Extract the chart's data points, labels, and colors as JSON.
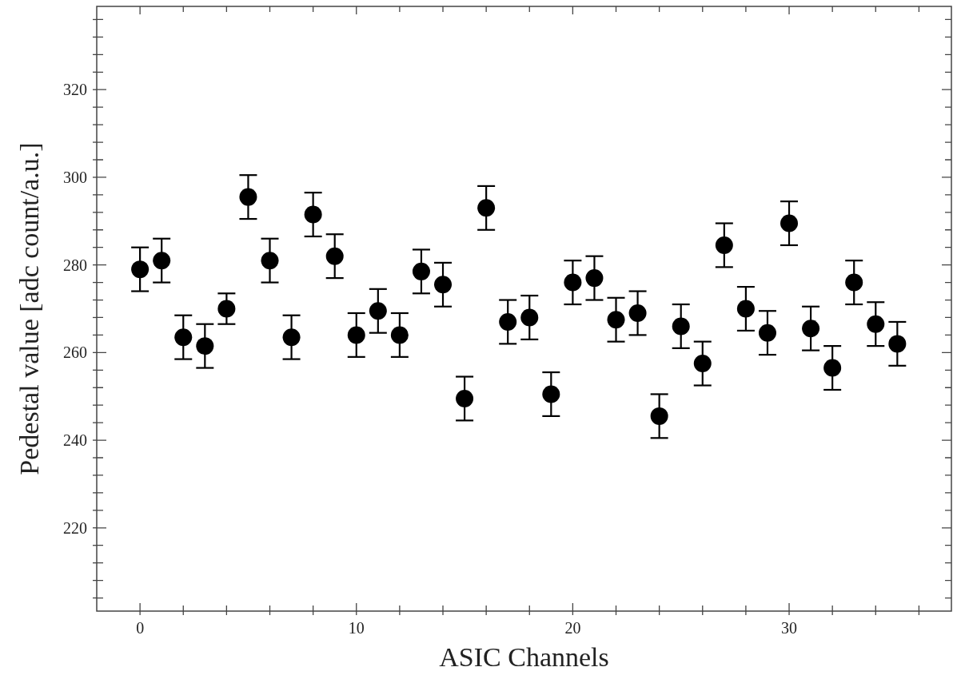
{
  "chart_data": {
    "type": "scatter",
    "xlabel": "ASIC Channels",
    "ylabel": "Pedestal value [adc count/a.u.]",
    "x": [
      0,
      1,
      2,
      3,
      4,
      5,
      6,
      7,
      8,
      9,
      10,
      11,
      12,
      13,
      14,
      15,
      16,
      17,
      18,
      19,
      20,
      21,
      22,
      23,
      24,
      25,
      26,
      27,
      28,
      29,
      30,
      31,
      32,
      33,
      34,
      35
    ],
    "values": [
      279,
      281,
      263.5,
      261.5,
      270,
      295.5,
      281,
      263.5,
      291.5,
      282,
      264,
      269.5,
      264,
      278.5,
      275.5,
      249.5,
      293,
      267,
      268,
      250.5,
      276,
      277,
      267.5,
      269,
      245.5,
      266,
      257.5,
      284.5,
      270,
      264.5,
      289.5,
      265.5,
      256.5,
      276,
      266.5,
      262
    ],
    "errors": [
      5,
      5,
      5,
      5,
      3.5,
      5,
      5,
      5,
      5,
      5,
      5,
      5,
      5,
      5,
      5,
      5,
      5,
      5,
      5,
      5,
      5,
      5,
      5,
      5,
      5,
      5,
      5,
      5,
      5,
      5,
      5,
      5,
      5,
      5,
      5,
      5
    ],
    "color": "#000000",
    "marker": "circle",
    "grid": false,
    "xlim": [
      -2,
      37.5
    ],
    "xticks": [
      0,
      {
        "value": 2,
        "label": null
      },
      {
        "value": 4,
        "label": null
      },
      {
        "value": 6,
        "label": null
      },
      {
        "value": 8,
        "label": null
      },
      10,
      {
        "value": 12,
        "label": null
      },
      {
        "value": 14,
        "label": null
      },
      {
        "value": 16,
        "label": null
      },
      {
        "value": 18,
        "label": null
      },
      20,
      {
        "value": 22,
        "label": null
      },
      {
        "value": 24,
        "label": null
      },
      {
        "value": 26,
        "label": null
      },
      {
        "value": 28,
        "label": null
      },
      30,
      {
        "value": 32,
        "label": null
      },
      {
        "value": 34,
        "label": null
      },
      {
        "value": 36,
        "label": null
      }
    ],
    "ylim": [
      201,
      339
    ],
    "yticks": [
      {
        "value": 204,
        "label": null
      },
      {
        "value": 208,
        "label": null
      },
      {
        "value": 212,
        "label": null
      },
      {
        "value": 216,
        "label": null
      },
      220,
      {
        "value": 224,
        "label": null
      },
      {
        "value": 228,
        "label": null
      },
      {
        "value": 232,
        "label": null
      },
      {
        "value": 236,
        "label": null
      },
      240,
      {
        "value": 244,
        "label": null
      },
      {
        "value": 248,
        "label": null
      },
      {
        "value": 252,
        "label": null
      },
      {
        "value": 256,
        "label": null
      },
      260,
      {
        "value": 264,
        "label": null
      },
      {
        "value": 268,
        "label": null
      },
      {
        "value": 272,
        "label": null
      },
      {
        "value": 276,
        "label": null
      },
      280,
      {
        "value": 284,
        "label": null
      },
      {
        "value": 288,
        "label": null
      },
      {
        "value": 292,
        "label": null
      },
      {
        "value": 296,
        "label": null
      },
      300,
      {
        "value": 304,
        "label": null
      },
      {
        "value": 308,
        "label": null
      },
      {
        "value": 312,
        "label": null
      },
      {
        "value": 316,
        "label": null
      },
      320,
      {
        "value": 324,
        "label": null
      },
      {
        "value": 328,
        "label": null
      },
      {
        "value": 332,
        "label": null
      },
      {
        "value": 336,
        "label": null
      }
    ]
  }
}
